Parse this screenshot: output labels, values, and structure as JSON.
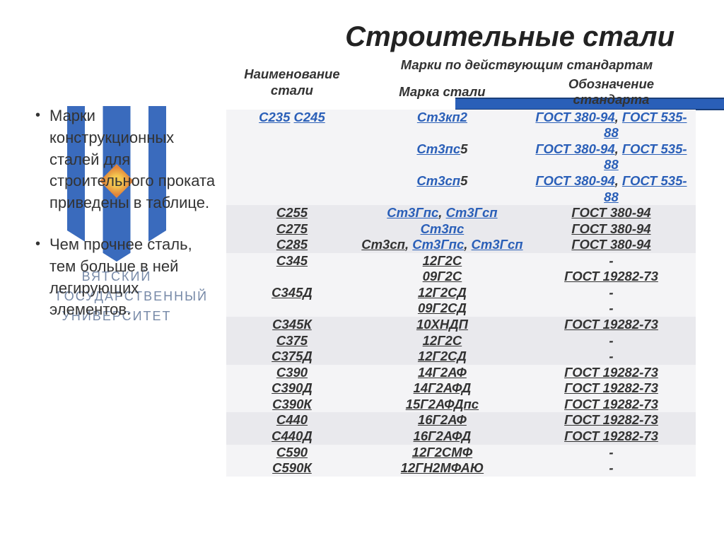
{
  "title": "Строительные стали",
  "bullets": [
    "Марки конструкционных сталей для строительного проката приведены в таблице.",
    "Чем прочнее сталь, тем больше в ней легирующих элементов."
  ],
  "logo": {
    "line1": "ВЯТСКИЙ",
    "line2": "ГОСУДАРСТВЕННЫЙ",
    "line3": "УНИВЕРСИТЕТ"
  },
  "table": {
    "headers": {
      "col1": "Наименование стали",
      "col2_group": "Марки по действующим стандартам",
      "col2a": "Марка стали",
      "col2b": "Обозначение стандарта"
    },
    "rows": [
      {
        "alt": "a",
        "name": [
          {
            "t": "С235",
            "cls": "link"
          },
          {
            "t": " ",
            "cls": "plain"
          },
          {
            "t": "С245",
            "cls": "link"
          }
        ],
        "grade": [
          {
            "t": "Ст3кп2",
            "cls": "link"
          }
        ],
        "std": [
          {
            "t": "ГОСТ 380-94",
            "cls": "link"
          },
          {
            "t": ", ",
            "cls": "plain"
          },
          {
            "t": "ГОСТ 535-88",
            "cls": "link"
          }
        ]
      },
      {
        "alt": "a",
        "name": [],
        "grade": [
          {
            "t": "Ст3пс",
            "cls": "link"
          },
          {
            "t": "5",
            "cls": "plain"
          }
        ],
        "std": [
          {
            "t": "ГОСТ 380-94",
            "cls": "link"
          },
          {
            "t": ", ",
            "cls": "plain"
          },
          {
            "t": "ГОСТ 535-88",
            "cls": "link"
          }
        ]
      },
      {
        "alt": "a",
        "name": [],
        "grade": [
          {
            "t": "Ст3сп",
            "cls": "link"
          },
          {
            "t": "5",
            "cls": "plain"
          }
        ],
        "std": [
          {
            "t": "ГОСТ 380-94",
            "cls": "link"
          },
          {
            "t": ", ",
            "cls": "plain"
          },
          {
            "t": "ГОСТ 535-88",
            "cls": "link"
          }
        ]
      },
      {
        "alt": "b",
        "name": [
          {
            "t": "С255",
            "cls": "dark"
          }
        ],
        "grade": [
          {
            "t": "Ст3Гпс",
            "cls": "link"
          },
          {
            "t": ", ",
            "cls": "plain"
          },
          {
            "t": "Ст3Гсп",
            "cls": "link"
          }
        ],
        "std": [
          {
            "t": "ГОСТ 380-94",
            "cls": "dark"
          }
        ]
      },
      {
        "alt": "b",
        "name": [
          {
            "t": "С275",
            "cls": "dark"
          }
        ],
        "grade": [
          {
            "t": "Ст3пс",
            "cls": "link"
          }
        ],
        "std": [
          {
            "t": "ГОСТ 380-94",
            "cls": "dark"
          }
        ]
      },
      {
        "alt": "b",
        "name": [
          {
            "t": "С285",
            "cls": "dark"
          }
        ],
        "grade": [
          {
            "t": "Ст3сп",
            "cls": "dark"
          },
          {
            "t": ", ",
            "cls": "plain"
          },
          {
            "t": "Ст3Гпс",
            "cls": "link"
          },
          {
            "t": ", ",
            "cls": "plain"
          },
          {
            "t": "Ст3Гсп",
            "cls": "link"
          }
        ],
        "std": [
          {
            "t": "ГОСТ 380-94",
            "cls": "dark"
          }
        ]
      },
      {
        "alt": "a",
        "name": [
          {
            "t": "С345",
            "cls": "dark"
          }
        ],
        "grade": [
          {
            "t": "12Г2С",
            "cls": "dark"
          }
        ],
        "std": [
          {
            "t": "-",
            "cls": "nolink"
          }
        ]
      },
      {
        "alt": "a",
        "name": [],
        "grade": [
          {
            "t": "09Г2С",
            "cls": "dark"
          }
        ],
        "std": [
          {
            "t": "ГОСТ 19282-73",
            "cls": "dark"
          }
        ]
      },
      {
        "alt": "a",
        "name": [
          {
            "t": "С345Д",
            "cls": "dark"
          }
        ],
        "grade": [
          {
            "t": "12Г2СД",
            "cls": "dark"
          }
        ],
        "std": [
          {
            "t": "-",
            "cls": "nolink"
          }
        ]
      },
      {
        "alt": "a",
        "name": [],
        "grade": [
          {
            "t": "09Г2СД",
            "cls": "dark"
          }
        ],
        "std": [
          {
            "t": "-",
            "cls": "nolink"
          }
        ]
      },
      {
        "alt": "b",
        "name": [
          {
            "t": "С345К",
            "cls": "dark"
          }
        ],
        "grade": [
          {
            "t": "10ХНДП",
            "cls": "dark"
          }
        ],
        "std": [
          {
            "t": "ГОСТ 19282-73",
            "cls": "dark"
          }
        ]
      },
      {
        "alt": "b",
        "name": [
          {
            "t": "С375",
            "cls": "dark"
          }
        ],
        "grade": [
          {
            "t": "12Г2С",
            "cls": "dark"
          }
        ],
        "std": [
          {
            "t": "-",
            "cls": "nolink"
          }
        ]
      },
      {
        "alt": "b",
        "name": [
          {
            "t": "С375Д",
            "cls": "dark"
          }
        ],
        "grade": [
          {
            "t": "12Г2СД",
            "cls": "dark"
          }
        ],
        "std": [
          {
            "t": "-",
            "cls": "nolink"
          }
        ]
      },
      {
        "alt": "a",
        "name": [
          {
            "t": "С390",
            "cls": "dark"
          }
        ],
        "grade": [
          {
            "t": "14Г2АФ",
            "cls": "dark"
          }
        ],
        "std": [
          {
            "t": "ГОСТ 19282-73",
            "cls": "dark"
          }
        ]
      },
      {
        "alt": "a",
        "name": [
          {
            "t": "С390Д",
            "cls": "dark"
          }
        ],
        "grade": [
          {
            "t": "14Г2АФД",
            "cls": "dark"
          }
        ],
        "std": [
          {
            "t": "ГОСТ 19282-73",
            "cls": "dark"
          }
        ]
      },
      {
        "alt": "a",
        "name": [
          {
            "t": "С390К",
            "cls": "dark"
          }
        ],
        "grade": [
          {
            "t": "15Г2АФДпс",
            "cls": "dark"
          }
        ],
        "std": [
          {
            "t": "ГОСТ 19282-73",
            "cls": "dark"
          }
        ]
      },
      {
        "alt": "b",
        "name": [
          {
            "t": "С440",
            "cls": "dark"
          }
        ],
        "grade": [
          {
            "t": "16Г2АФ",
            "cls": "dark"
          }
        ],
        "std": [
          {
            "t": "ГОСТ 19282-73",
            "cls": "dark"
          }
        ]
      },
      {
        "alt": "b",
        "name": [
          {
            "t": "С440Д",
            "cls": "dark"
          }
        ],
        "grade": [
          {
            "t": "16Г2АФД",
            "cls": "dark"
          }
        ],
        "std": [
          {
            "t": "ГОСТ 19282-73",
            "cls": "dark"
          }
        ]
      },
      {
        "alt": "a",
        "name": [
          {
            "t": "С590",
            "cls": "dark"
          }
        ],
        "grade": [
          {
            "t": "12Г2СМФ",
            "cls": "dark"
          }
        ],
        "std": [
          {
            "t": "-",
            "cls": "nolink"
          }
        ]
      },
      {
        "alt": "a",
        "name": [
          {
            "t": "С590К",
            "cls": "dark"
          }
        ],
        "grade": [
          {
            "t": "12ГН2МФАЮ",
            "cls": "dark"
          }
        ],
        "std": [
          {
            "t": "-",
            "cls": "nolink"
          }
        ]
      }
    ]
  }
}
